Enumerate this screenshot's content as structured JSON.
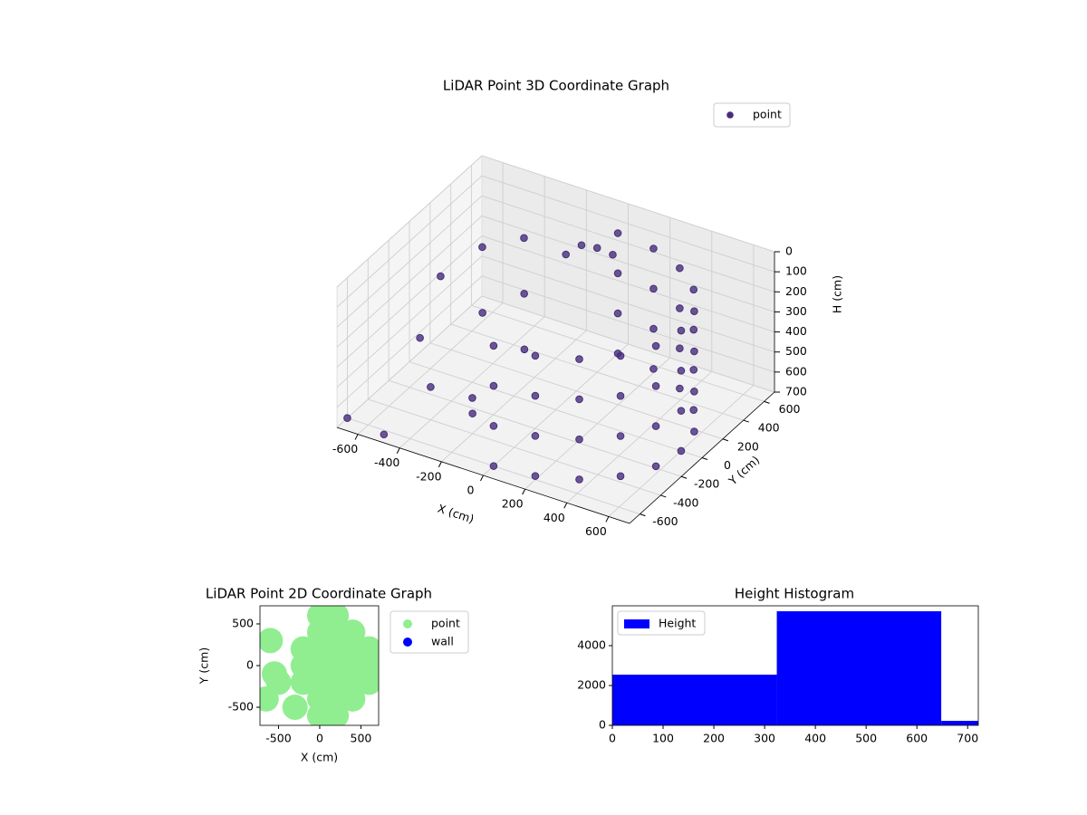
{
  "chart_data": [
    {
      "type": "scatter3d",
      "title": "LiDAR Point 3D Coordinate Graph",
      "xlabel": "X (cm)",
      "ylabel": "Y (cm)",
      "zlabel": "H (cm)",
      "xlim": [
        -700,
        700
      ],
      "ylim": [
        -700,
        700
      ],
      "zlim": [
        700,
        0
      ],
      "xticks": [
        -600,
        -400,
        -200,
        0,
        200,
        400,
        600
      ],
      "yticks": [
        -600,
        -400,
        -200,
        0,
        200,
        400,
        600
      ],
      "zticks": [
        0,
        100,
        200,
        300,
        400,
        500,
        600,
        700
      ],
      "grid": true,
      "legend": "upper right",
      "series": [
        {
          "name": "point",
          "color": "#472d7b",
          "x": [
            0,
            185,
            353,
            485,
            571,
            600,
            571,
            485,
            353,
            185,
            0,
            0,
            185,
            353,
            485,
            571,
            600,
            571,
            485,
            353,
            185,
            0,
            0,
            185,
            353,
            485,
            571,
            600,
            571,
            485,
            353,
            185,
            0,
            0,
            185,
            353,
            485,
            571,
            600,
            571,
            485,
            353,
            185,
            0,
            -650,
            -600,
            -500,
            -450,
            -400,
            -300,
            -350,
            -200,
            -250,
            -150,
            -100,
            0,
            50,
            -50,
            -700,
            -500
          ],
          "y": [
            -600,
            -571,
            -485,
            -353,
            -185,
            0,
            185,
            353,
            485,
            571,
            600,
            -600,
            -571,
            -485,
            -353,
            -185,
            0,
            185,
            353,
            485,
            571,
            600,
            -600,
            -571,
            -485,
            -353,
            -185,
            0,
            185,
            353,
            485,
            571,
            600,
            -600,
            -571,
            -485,
            -353,
            -185,
            0,
            185,
            353,
            485,
            571,
            600,
            200,
            -100,
            300,
            -300,
            100,
            -200,
            400,
            -400,
            200,
            0,
            300,
            400,
            450,
            350,
            -600,
            -650
          ],
          "z": [
            100,
            100,
            100,
            100,
            100,
            100,
            100,
            100,
            100,
            100,
            100,
            300,
            300,
            300,
            300,
            300,
            300,
            300,
            300,
            300,
            300,
            300,
            500,
            500,
            500,
            500,
            500,
            500,
            500,
            500,
            500,
            500,
            500,
            700,
            700,
            700,
            700,
            700,
            700,
            700,
            700,
            700,
            700,
            700,
            350,
            500,
            200,
            600,
            400,
            650,
            150,
            600,
            300,
            450,
            100,
            80,
            120,
            60,
            700,
            690
          ]
        }
      ]
    },
    {
      "type": "scatter",
      "title": "LiDAR Point 2D Coordinate Graph",
      "xlabel": "X (cm)",
      "ylabel": "Y (cm)",
      "xlim": [
        -725,
        715
      ],
      "ylim": [
        -717,
        717
      ],
      "xticks": [
        -500,
        0,
        500
      ],
      "yticks": [
        -500,
        0,
        500
      ],
      "legend": "outside right",
      "series": [
        {
          "name": "point",
          "color": "#90ee90",
          "x": [
            0,
            0,
            0,
            0,
            0,
            0,
            0,
            200,
            200,
            200,
            200,
            200,
            200,
            200,
            400,
            400,
            400,
            400,
            400,
            600,
            600,
            600,
            -200,
            -200,
            -200,
            -600,
            -650,
            -500,
            -300,
            -550
          ],
          "y": [
            -600,
            -400,
            -200,
            0,
            200,
            400,
            600,
            -600,
            -400,
            -200,
            0,
            200,
            400,
            600,
            -400,
            -200,
            0,
            200,
            400,
            -200,
            0,
            200,
            -200,
            0,
            200,
            300,
            -400,
            -200,
            -500,
            -100
          ]
        },
        {
          "name": "wall",
          "color": "#0000ff",
          "x": [],
          "y": []
        }
      ]
    },
    {
      "type": "histogram",
      "title": "Height Histogram",
      "xlim": [
        0,
        721
      ],
      "ylim": [
        0,
        6000
      ],
      "xticks": [
        0,
        100,
        200,
        300,
        400,
        500,
        600,
        700
      ],
      "yticks": [
        0,
        2000,
        4000
      ],
      "bins": [
        0,
        324,
        648,
        721
      ],
      "legend": "upper left",
      "series": [
        {
          "name": "Height",
          "color": "#0000ff",
          "values": [
            2545,
            5727,
            227
          ]
        }
      ]
    }
  ]
}
